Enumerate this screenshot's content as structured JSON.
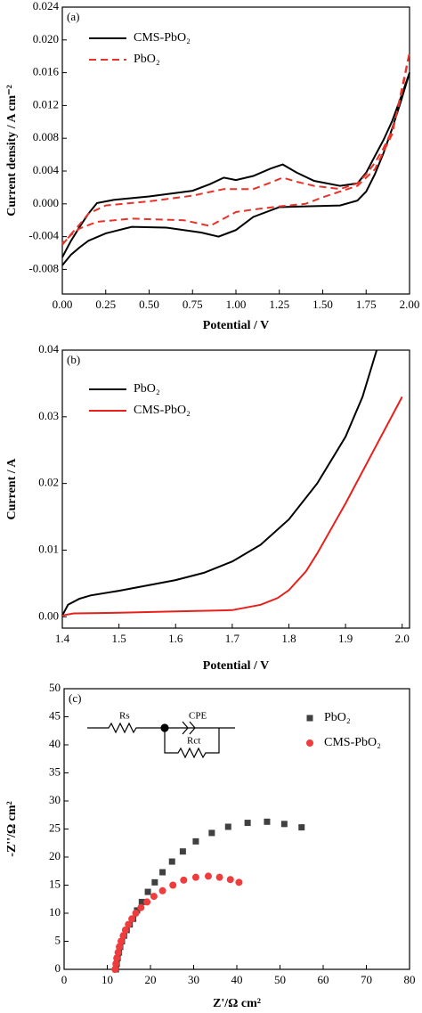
{
  "chart_data": [
    {
      "type": "line",
      "label": "(a)",
      "x_label": "Potential / V",
      "y_label": "Current density / A cm⁻²",
      "xlim": [
        0,
        2
      ],
      "ylim": [
        -0.011,
        0.024
      ],
      "xticks": [
        {
          "value": 0,
          "label": "0.00"
        },
        0.25,
        {
          "value": 0.5,
          "label": "0.50"
        },
        0.75,
        {
          "value": 1,
          "label": "1.00"
        },
        1.25,
        {
          "value": 1.5,
          "label": "1.50"
        },
        1.75,
        {
          "value": 2,
          "label": "2.00"
        }
      ],
      "yticks": [
        -0.008,
        -0.004,
        {
          "value": 0,
          "label": "0.000"
        },
        0.004,
        0.008,
        0.012,
        0.016,
        {
          "value": 0.02,
          "label": "0.020"
        },
        0.024
      ],
      "legend": "upper left",
      "series": [
        {
          "name": "CMS-PbO₂",
          "color": "#000000",
          "linestyle": "solid",
          "x": [
            0,
            0.05,
            0.1,
            0.15,
            0.2,
            0.3,
            0.5,
            0.75,
            0.85,
            0.93,
            1.0,
            1.1,
            1.2,
            1.27,
            1.35,
            1.45,
            1.6,
            1.7,
            1.75,
            1.8,
            1.85,
            1.9,
            1.95,
            2.0,
            1.95,
            1.9,
            1.85,
            1.8,
            1.75,
            1.7,
            1.6,
            1.4,
            1.25,
            1.1,
            1.0,
            0.9,
            0.8,
            0.6,
            0.4,
            0.25,
            0.15,
            0.1,
            0.05,
            0
          ],
          "values": [
            -0.0065,
            -0.0045,
            -0.0028,
            -0.0012,
            0.0001,
            0.0005,
            0.0009,
            0.0016,
            0.0024,
            0.0032,
            0.0029,
            0.0034,
            0.0043,
            0.0048,
            0.0038,
            0.0028,
            0.0022,
            0.0025,
            0.0038,
            0.0058,
            0.0078,
            0.0101,
            0.013,
            0.016,
            0.0125,
            0.0092,
            0.0062,
            0.0036,
            0.0015,
            0.0004,
            -0.0002,
            -0.0003,
            -0.0004,
            -0.0016,
            -0.0032,
            -0.004,
            -0.0035,
            -0.0029,
            -0.0028,
            -0.0036,
            -0.0045,
            -0.0053,
            -0.0062,
            -0.0075
          ]
        },
        {
          "name": "PbO₂",
          "color": "#e8332a",
          "linestyle": "dashed",
          "x": [
            0,
            0.05,
            0.1,
            0.15,
            0.25,
            0.5,
            0.75,
            0.93,
            1.1,
            1.2,
            1.27,
            1.35,
            1.45,
            1.6,
            1.7,
            1.75,
            1.8,
            1.85,
            1.9,
            1.95,
            2.0,
            1.9,
            1.8,
            1.7,
            1.6,
            1.5,
            1.4,
            1.25,
            1.1,
            1.0,
            0.85,
            0.7,
            0.4,
            0.2,
            0.1,
            0.05,
            0
          ],
          "values": [
            -0.005,
            -0.0037,
            -0.0025,
            -0.0012,
            -0.0002,
            0.0003,
            0.001,
            0.0018,
            0.0018,
            0.0026,
            0.0032,
            0.0027,
            0.0022,
            0.0018,
            0.0025,
            0.0036,
            0.005,
            0.0068,
            0.009,
            0.013,
            0.0185,
            0.0085,
            0.0042,
            0.0022,
            0.0015,
            0.0008,
            0.0,
            -0.0003,
            -0.0007,
            -0.001,
            -0.0027,
            -0.002,
            -0.0018,
            -0.0022,
            -0.003,
            -0.0038,
            -0.0048
          ]
        }
      ]
    },
    {
      "type": "line",
      "label": "(b)",
      "x_label": "Potential / V",
      "y_label": "Current / A",
      "xlim": [
        1.4,
        2.013
      ],
      "ylim": [
        -0.0017,
        0.04
      ],
      "xticks": [
        1.4,
        1.5,
        1.6,
        1.7,
        1.8,
        1.9,
        {
          "value": 2,
          "label": "2.0"
        }
      ],
      "yticks": [
        {
          "value": 0,
          "label": "0.00"
        },
        0.01,
        0.02,
        0.03,
        0.04
      ],
      "legend": "upper left",
      "series": [
        {
          "name": "PbO₂",
          "color": "#000000",
          "linestyle": "solid",
          "x": [
            1.4,
            1.41,
            1.43,
            1.45,
            1.5,
            1.55,
            1.6,
            1.65,
            1.7,
            1.75,
            1.8,
            1.85,
            1.9,
            1.93,
            1.955
          ],
          "values": [
            0.0002,
            0.0018,
            0.0027,
            0.0032,
            0.0039,
            0.0047,
            0.0055,
            0.0066,
            0.0083,
            0.0108,
            0.0146,
            0.02,
            0.027,
            0.033,
            0.04
          ]
        },
        {
          "name": "CMS-PbO₂",
          "color": "#e8201c",
          "linestyle": "solid",
          "x": [
            1.4,
            1.42,
            1.5,
            1.6,
            1.7,
            1.75,
            1.78,
            1.8,
            1.83,
            1.85,
            1.9,
            1.95,
            2.0
          ],
          "values": [
            0.0002,
            0.0005,
            0.0006,
            0.0008,
            0.001,
            0.0018,
            0.0028,
            0.004,
            0.0068,
            0.0095,
            0.017,
            0.025,
            0.033
          ]
        }
      ]
    },
    {
      "type": "scatter",
      "label": "(c)",
      "x_label": "Z'/Ω cm²",
      "y_label": "-Z''/Ω cm²",
      "circuit_labels": [
        "Rs",
        "CPE",
        "Rct"
      ],
      "xlim": [
        0,
        80
      ],
      "ylim": [
        0,
        50
      ],
      "xticks": [
        0,
        10,
        20,
        30,
        40,
        50,
        60,
        70,
        80
      ],
      "yticks": [
        0,
        5,
        10,
        15,
        20,
        25,
        30,
        35,
        40,
        45,
        50
      ],
      "legend": "upper right",
      "series": [
        {
          "name": "PbO₂",
          "color": "#404040",
          "marker": "square",
          "x": [
            12,
            12.2,
            12.4,
            12.7,
            13,
            13.4,
            13.9,
            14.5,
            15.2,
            16,
            16.9,
            18,
            19.4,
            21,
            22.8,
            25,
            27.5,
            30.5,
            34.2,
            38,
            42.5,
            47,
            51,
            55
          ],
          "values": [
            0,
            1,
            2,
            3,
            4,
            5,
            6,
            7,
            8,
            9,
            10.5,
            12,
            13.8,
            15.5,
            17.3,
            19.2,
            21,
            22.8,
            24.3,
            25.4,
            26.1,
            26.3,
            25.9,
            25.3
          ]
        },
        {
          "name": "CMS-PbO₂",
          "color": "#f03c3c",
          "marker": "circle",
          "x": [
            11.8,
            12,
            12.2,
            12.5,
            12.8,
            13.2,
            13.7,
            14.2,
            14.9,
            15.7,
            16.6,
            17.8,
            19.2,
            20.8,
            22.8,
            25.2,
            27.7,
            30.5,
            33.4,
            36,
            38.5,
            40.5
          ],
          "values": [
            0,
            1,
            2,
            3,
            4,
            5,
            6,
            7,
            8,
            9,
            10,
            11,
            12,
            13,
            14,
            15,
            15.9,
            16.4,
            16.6,
            16.4,
            16,
            15.5
          ]
        }
      ]
    }
  ]
}
